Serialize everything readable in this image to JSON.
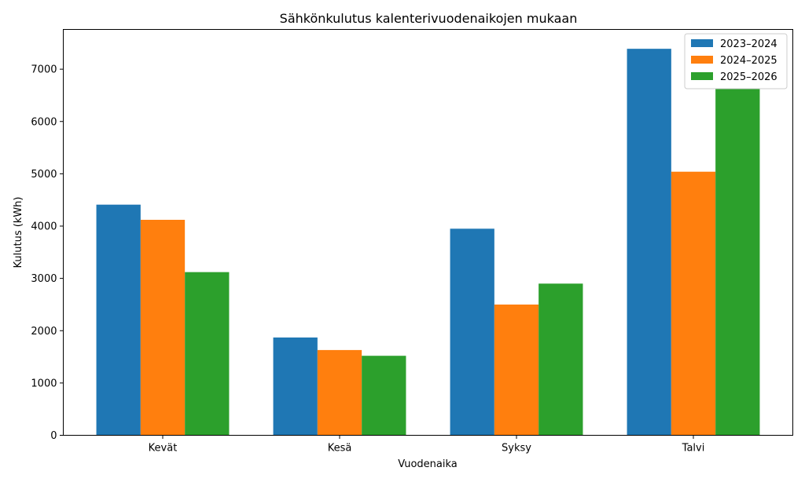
{
  "chart_data": {
    "type": "bar",
    "title": "Sähkönkulutus kalenterivuodenaikojen mukaan",
    "xlabel": "Vuodenaika",
    "ylabel": "Kulutus (kWh)",
    "categories": [
      "Kevät",
      "Kesä",
      "Syksy",
      "Talvi"
    ],
    "series": [
      {
        "name": "2023–2024",
        "color": "#1f77b4",
        "values": [
          4410,
          1870,
          3950,
          7390
        ]
      },
      {
        "name": "2024–2025",
        "color": "#ff7f0e",
        "values": [
          4120,
          1630,
          2500,
          5040
        ]
      },
      {
        "name": "2025–2026",
        "color": "#2ca02c",
        "values": [
          3120,
          1520,
          2900,
          6630
        ]
      }
    ],
    "ylim": [
      0,
      7760
    ],
    "yticks": [
      0,
      1000,
      2000,
      3000,
      4000,
      5000,
      6000,
      7000
    ],
    "grid": false,
    "legend_position": "top-right"
  }
}
